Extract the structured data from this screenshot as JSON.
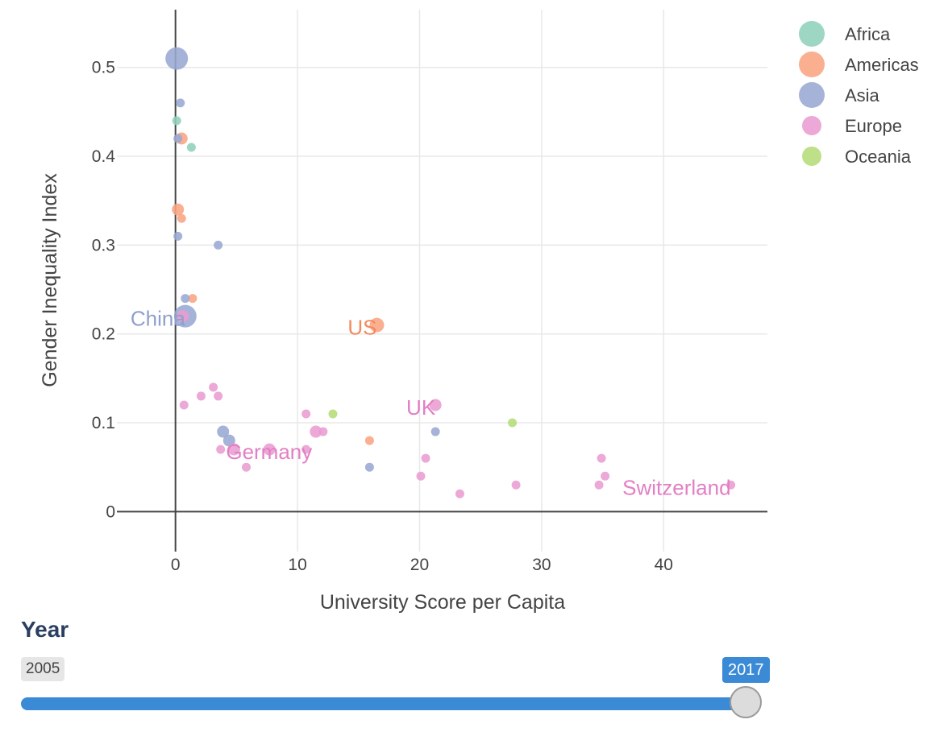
{
  "chart_data": {
    "type": "scatter",
    "xlabel": "University Score per Capita",
    "ylabel": "Gender Inequality Index",
    "xlim": [
      -4.8,
      48.5
    ],
    "ylim": [
      -0.045,
      0.565
    ],
    "x_ticks": [
      0,
      10,
      20,
      30,
      40
    ],
    "y_ticks": [
      0,
      0.1,
      0.2,
      0.3,
      0.4,
      0.5
    ],
    "x_tick_labels": [
      "0",
      "10",
      "20",
      "30",
      "40"
    ],
    "y_tick_labels": [
      "0",
      "0.1",
      "0.2",
      "0.3",
      "0.4",
      "0.5"
    ],
    "grid": true,
    "legend_position": "top-right",
    "series": [
      {
        "name": "Africa",
        "color": "#8fd1bb",
        "points": [
          {
            "x": 0.1,
            "y": 0.44,
            "size": "small"
          },
          {
            "x": 1.3,
            "y": 0.41,
            "size": "small"
          }
        ]
      },
      {
        "name": "Americas",
        "color": "#f9a482",
        "points": [
          {
            "x": 0.5,
            "y": 0.42,
            "size": "medium"
          },
          {
            "x": 0.2,
            "y": 0.34,
            "size": "medium"
          },
          {
            "x": 0.5,
            "y": 0.33,
            "size": "small"
          },
          {
            "x": 1.4,
            "y": 0.24,
            "size": "small"
          },
          {
            "x": 16.5,
            "y": 0.21,
            "size": "large"
          },
          {
            "x": 15.9,
            "y": 0.08,
            "size": "small"
          }
        ]
      },
      {
        "name": "Asia",
        "color": "#99a9d3",
        "points": [
          {
            "x": 0.1,
            "y": 0.51,
            "size": "xlarge"
          },
          {
            "x": 0.4,
            "y": 0.46,
            "size": "small"
          },
          {
            "x": 0.2,
            "y": 0.42,
            "size": "small"
          },
          {
            "x": 0.2,
            "y": 0.31,
            "size": "small"
          },
          {
            "x": 3.5,
            "y": 0.3,
            "size": "small"
          },
          {
            "x": 0.8,
            "y": 0.24,
            "size": "small"
          },
          {
            "x": 0.8,
            "y": 0.22,
            "size": "xlarge"
          },
          {
            "x": 3.9,
            "y": 0.09,
            "size": "medium"
          },
          {
            "x": 4.4,
            "y": 0.08,
            "size": "medium"
          },
          {
            "x": 21.3,
            "y": 0.09,
            "size": "small"
          },
          {
            "x": 15.9,
            "y": 0.05,
            "size": "small"
          }
        ]
      },
      {
        "name": "Europe",
        "color": "#e99cd0",
        "points": [
          {
            "x": 0.6,
            "y": 0.22,
            "size": "medium"
          },
          {
            "x": 3.1,
            "y": 0.14,
            "size": "small"
          },
          {
            "x": 3.5,
            "y": 0.13,
            "size": "small"
          },
          {
            "x": 2.1,
            "y": 0.13,
            "size": "small"
          },
          {
            "x": 0.7,
            "y": 0.12,
            "size": "small"
          },
          {
            "x": 3.7,
            "y": 0.07,
            "size": "small"
          },
          {
            "x": 4.8,
            "y": 0.07,
            "size": "medium"
          },
          {
            "x": 5.8,
            "y": 0.05,
            "size": "small"
          },
          {
            "x": 7.7,
            "y": 0.07,
            "size": "medium"
          },
          {
            "x": 10.7,
            "y": 0.11,
            "size": "small"
          },
          {
            "x": 10.7,
            "y": 0.07,
            "size": "small"
          },
          {
            "x": 11.5,
            "y": 0.09,
            "size": "medium"
          },
          {
            "x": 12.1,
            "y": 0.09,
            "size": "small"
          },
          {
            "x": 21.3,
            "y": 0.12,
            "size": "medium"
          },
          {
            "x": 20.5,
            "y": 0.06,
            "size": "small"
          },
          {
            "x": 20.1,
            "y": 0.04,
            "size": "small"
          },
          {
            "x": 23.3,
            "y": 0.02,
            "size": "small"
          },
          {
            "x": 27.9,
            "y": 0.03,
            "size": "small"
          },
          {
            "x": 34.9,
            "y": 0.06,
            "size": "small"
          },
          {
            "x": 35.2,
            "y": 0.04,
            "size": "small"
          },
          {
            "x": 34.7,
            "y": 0.03,
            "size": "small"
          },
          {
            "x": 45.5,
            "y": 0.03,
            "size": "small"
          }
        ]
      },
      {
        "name": "Oceania",
        "color": "#b5dc79",
        "points": [
          {
            "x": 12.9,
            "y": 0.11,
            "size": "small"
          },
          {
            "x": 27.6,
            "y": 0.1,
            "size": "small"
          }
        ]
      }
    ],
    "annotations": [
      {
        "text": "China",
        "x": 0.8,
        "y": 0.22,
        "anchor": "end",
        "color": "#8f9fcd"
      },
      {
        "text": "US",
        "x": 16.5,
        "y": 0.21,
        "anchor": "end",
        "color": "#f4895e"
      },
      {
        "text": "UK",
        "x": 21.3,
        "y": 0.12,
        "anchor": "end",
        "color": "#e27fc4"
      },
      {
        "text": "Germany",
        "x": 4.8,
        "y": 0.07,
        "anchor": "start",
        "color": "#e27fc4"
      },
      {
        "text": "Switzerland",
        "x": 45.5,
        "y": 0.03,
        "anchor": "end",
        "color": "#e27fc4"
      }
    ]
  },
  "slider": {
    "title": "Year",
    "min_label": "2005",
    "current_label": "2017",
    "value_fraction": 1.0
  }
}
